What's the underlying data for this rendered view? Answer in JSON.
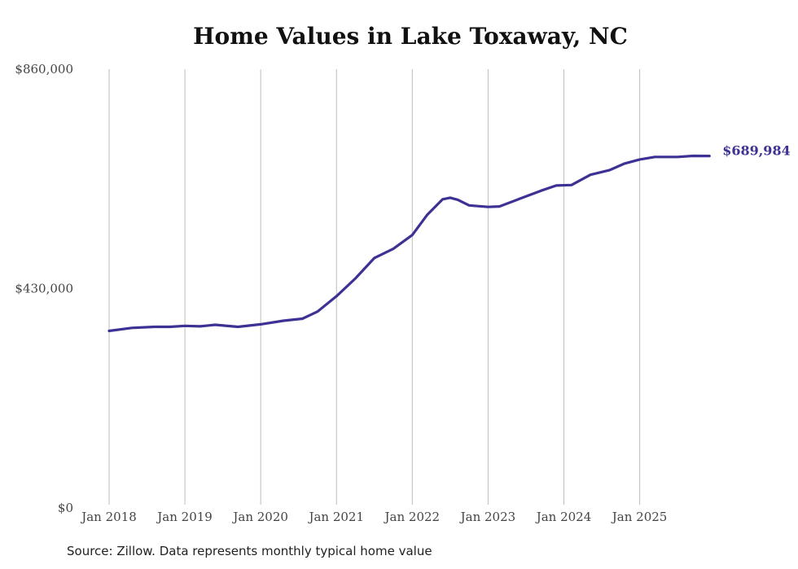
{
  "chart_data": {
    "type": "line",
    "title": "Home Values in Lake Toxaway, NC",
    "xlabel": "",
    "ylabel": "",
    "ylim": [
      0,
      860000
    ],
    "y_ticks": [
      0,
      430000,
      860000
    ],
    "y_tick_labels": [
      "$0",
      "$430,000",
      "$860,000"
    ],
    "x_ticks": [
      2018,
      2019,
      2020,
      2021,
      2022,
      2023,
      2024,
      2025
    ],
    "x_tick_labels": [
      "Jan 2018",
      "Jan 2019",
      "Jan 2020",
      "Jan 2021",
      "Jan 2022",
      "Jan 2023",
      "Jan 2024",
      "Jan 2025"
    ],
    "xlim": [
      2018,
      2025.95
    ],
    "grid": "vertical",
    "line_color": "#3d3294",
    "series": [
      {
        "name": "Typical home value",
        "points": [
          [
            2018.0,
            347000
          ],
          [
            2018.3,
            353000
          ],
          [
            2018.6,
            355000
          ],
          [
            2018.8,
            355000
          ],
          [
            2019.0,
            357000
          ],
          [
            2019.2,
            356000
          ],
          [
            2019.4,
            359000
          ],
          [
            2019.7,
            355000
          ],
          [
            2020.0,
            360000
          ],
          [
            2020.3,
            367000
          ],
          [
            2020.55,
            371000
          ],
          [
            2020.75,
            385000
          ],
          [
            2021.0,
            415000
          ],
          [
            2021.25,
            450000
          ],
          [
            2021.5,
            490000
          ],
          [
            2021.75,
            508000
          ],
          [
            2022.0,
            535000
          ],
          [
            2022.2,
            575000
          ],
          [
            2022.4,
            605000
          ],
          [
            2022.5,
            608000
          ],
          [
            2022.6,
            604000
          ],
          [
            2022.75,
            593000
          ],
          [
            2023.0,
            590000
          ],
          [
            2023.15,
            591000
          ],
          [
            2023.4,
            605000
          ],
          [
            2023.7,
            622000
          ],
          [
            2023.9,
            632000
          ],
          [
            2024.1,
            633000
          ],
          [
            2024.35,
            653000
          ],
          [
            2024.6,
            662000
          ],
          [
            2024.8,
            675000
          ],
          [
            2025.0,
            683000
          ],
          [
            2025.2,
            688000
          ],
          [
            2025.5,
            688000
          ],
          [
            2025.7,
            690000
          ],
          [
            2025.92,
            689984
          ]
        ]
      }
    ],
    "end_label": "$689,984"
  },
  "footer": {
    "source": "Source: Zillow. Data represents monthly typical home value"
  }
}
